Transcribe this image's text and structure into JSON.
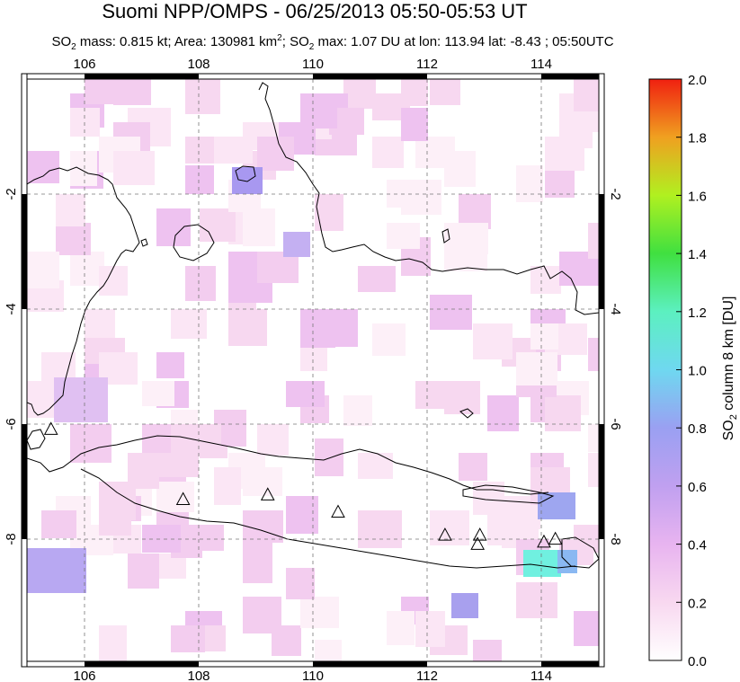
{
  "title": "Suomi NPP/OMPS - 06/25/2013 05:50-05:53 UT",
  "subtitle": {
    "so2_mass_label": "SO",
    "so2_mass_rest": " mass: 0.815 kt; Area: 130981 km",
    "area_rest": "; SO",
    "max_rest": " max: 1.07 DU at lon: 113.94 lat: -8.43 ; 05:50UTC",
    "sub2": "2",
    "sup2": "2"
  },
  "map": {
    "lon_ticks": [
      "106",
      "108",
      "110",
      "112",
      "114"
    ],
    "lat_ticks": [
      "-2",
      "-4",
      "-6",
      "-8"
    ],
    "volcanoes": [
      {
        "lon": 105.42,
        "lat": -6.1
      },
      {
        "lon": 107.73,
        "lat": -7.32
      },
      {
        "lon": 109.21,
        "lat": -7.24
      },
      {
        "lon": 110.44,
        "lat": -7.54
      },
      {
        "lon": 112.31,
        "lat": -7.94
      },
      {
        "lon": 112.92,
        "lat": -7.94
      },
      {
        "lon": 112.88,
        "lat": -8.1
      },
      {
        "lon": 114.04,
        "lat": -8.06
      },
      {
        "lon": 114.24,
        "lat": -8.01
      }
    ]
  },
  "colorbar": {
    "label": "SO2 column 8 km [DU]",
    "label_main": "SO",
    "label_sub": "2",
    "label_rest": " column 8 km [DU]",
    "ticks": [
      "2.0",
      "1.8",
      "1.6",
      "1.4",
      "1.2",
      "1.0",
      "0.8",
      "0.6",
      "0.4",
      "0.2",
      "0.0"
    ]
  }
}
